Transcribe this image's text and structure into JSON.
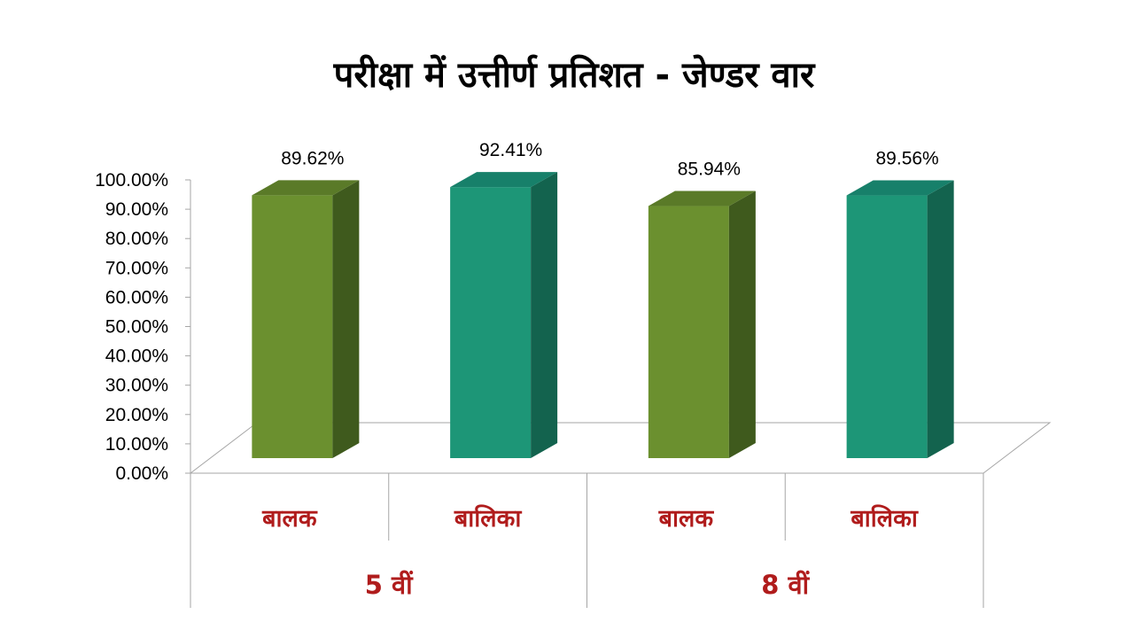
{
  "chart_data": {
    "type": "bar",
    "title": "परीक्षा में उत्तीर्ण प्रतिशत - जेण्डर वार",
    "categories": [
      "बालक",
      "बालिका",
      "बालक",
      "बालिका"
    ],
    "groups": [
      {
        "label": "5 वीं",
        "categories": [
          "बालक",
          "बालिका"
        ]
      },
      {
        "label": "8 वीं",
        "categories": [
          "बालक",
          "बालिका"
        ]
      }
    ],
    "values": [
      89.62,
      92.41,
      85.94,
      89.56
    ],
    "value_labels": [
      "89.62%",
      "92.41%",
      "85.94%",
      "89.56%"
    ],
    "ylim": [
      0,
      100
    ],
    "yticks": [
      "0.00%",
      "10.00%",
      "20.00%",
      "30.00%",
      "40.00%",
      "50.00%",
      "60.00%",
      "70.00%",
      "80.00%",
      "90.00%",
      "100.00%"
    ],
    "xlabel": "",
    "ylabel": "",
    "grid": false,
    "legend": "none",
    "bar_style": "3d",
    "colors": {
      "बालक": {
        "front": "#6b902f",
        "side": "#3f5a1d",
        "top": "#5a7a28"
      },
      "बालिका": {
        "front": "#1d9677",
        "side": "#13634e",
        "top": "#17806a"
      },
      "category_text": "#b01c1c"
    }
  }
}
